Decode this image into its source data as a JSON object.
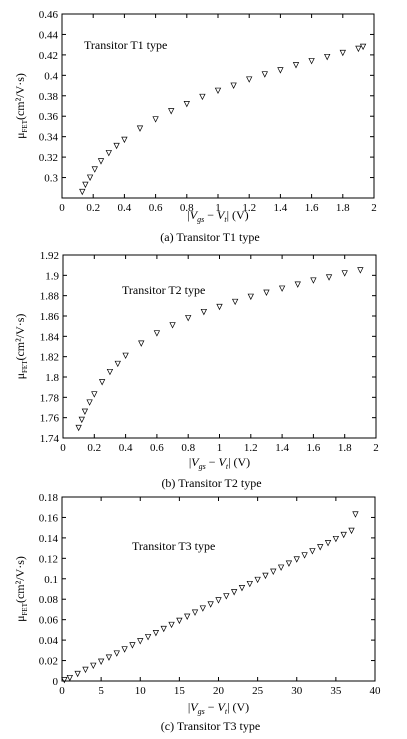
{
  "chart_data": [
    {
      "type": "scatter",
      "caption": "(a) Transitor T1 type",
      "annotation": "Transitor T1 type",
      "ylabel_main": "μ",
      "ylabel_sub": "FET",
      "ylabel_rest": "(cm²/V·s)",
      "xlabel": "|V_gs − V_t| (V)",
      "xlim": [
        0,
        2
      ],
      "ylim": [
        0.28,
        0.46
      ],
      "xticks": [
        "0",
        "0.2",
        "0.4",
        "0.6",
        "0.8",
        "1",
        "1.2",
        "1.4",
        "1.6",
        "1.8",
        "2"
      ],
      "yticks": [
        "0.3",
        "0.32",
        "0.34",
        "0.36",
        "0.38",
        "0.4",
        "0.42",
        "0.44",
        "0.46"
      ],
      "marker": "triangle-down",
      "grid": false,
      "series": [
        {
          "x": [
            0.13,
            0.15,
            0.18,
            0.21,
            0.25,
            0.3,
            0.35,
            0.4,
            0.5,
            0.6,
            0.7,
            0.8,
            0.9,
            1.0,
            1.1,
            1.2,
            1.3,
            1.4,
            1.5,
            1.6,
            1.7,
            1.8,
            1.9,
            1.93
          ],
          "y": [
            0.286,
            0.293,
            0.3,
            0.308,
            0.316,
            0.324,
            0.331,
            0.337,
            0.348,
            0.357,
            0.365,
            0.372,
            0.379,
            0.385,
            0.39,
            0.396,
            0.401,
            0.405,
            0.41,
            0.414,
            0.418,
            0.422,
            0.426,
            0.428
          ]
        }
      ]
    },
    {
      "type": "scatter",
      "caption": "(b) Transitor T2 type",
      "annotation": "Transitor T2 type",
      "ylabel_main": "μ",
      "ylabel_sub": "FET",
      "ylabel_rest": "(cm²/V·s)",
      "xlabel": "|V_gs − V_t| (V)",
      "xlim": [
        0,
        2
      ],
      "ylim": [
        1.74,
        1.92
      ],
      "xticks": [
        "0",
        "0.2",
        "0.4",
        "0.6",
        "0.8",
        "1",
        "1.2",
        "1.4",
        "1.6",
        "1.8",
        "2"
      ],
      "yticks": [
        "1.74",
        "1.76",
        "1.78",
        "1.8",
        "1.82",
        "1.84",
        "1.86",
        "1.88",
        "1.9",
        "1.92"
      ],
      "marker": "triangle-down",
      "grid": false,
      "series": [
        {
          "x": [
            0.1,
            0.12,
            0.14,
            0.17,
            0.2,
            0.25,
            0.3,
            0.35,
            0.4,
            0.5,
            0.6,
            0.7,
            0.8,
            0.9,
            1.0,
            1.1,
            1.2,
            1.3,
            1.4,
            1.5,
            1.6,
            1.7,
            1.8,
            1.9
          ],
          "y": [
            1.75,
            1.758,
            1.766,
            1.775,
            1.783,
            1.795,
            1.805,
            1.813,
            1.821,
            1.833,
            1.843,
            1.851,
            1.858,
            1.864,
            1.869,
            1.874,
            1.879,
            1.883,
            1.887,
            1.891,
            1.895,
            1.898,
            1.902,
            1.905
          ]
        }
      ]
    },
    {
      "type": "scatter",
      "caption": "(c) Transitor T3 type",
      "annotation": "Transitor T3 type",
      "ylabel_main": "μ",
      "ylabel_sub": "FET",
      "ylabel_rest": "(cm²/V·s)",
      "xlabel": "|V_gs − V_t| (V)",
      "xlim": [
        0,
        40
      ],
      "ylim": [
        0,
        0.18
      ],
      "xticks": [
        "0",
        "5",
        "10",
        "15",
        "20",
        "25",
        "30",
        "35",
        "40"
      ],
      "yticks": [
        "0",
        "0.02",
        "0.04",
        "0.06",
        "0.08",
        "0.1",
        "0.12",
        "0.14",
        "0.16",
        "0.18"
      ],
      "marker": "triangle-down",
      "grid": false,
      "series": [
        {
          "x": [
            0.3,
            1,
            2,
            3,
            4,
            5,
            6,
            7,
            8,
            9,
            10,
            11,
            12,
            13,
            14,
            15,
            16,
            17,
            18,
            19,
            20,
            21,
            22,
            23,
            24,
            25,
            26,
            27,
            28,
            29,
            30,
            31,
            32,
            33,
            34,
            35,
            36,
            37,
            37.5
          ],
          "y": [
            0.001,
            0.003,
            0.007,
            0.011,
            0.015,
            0.019,
            0.023,
            0.027,
            0.031,
            0.035,
            0.039,
            0.043,
            0.047,
            0.051,
            0.055,
            0.059,
            0.063,
            0.067,
            0.071,
            0.075,
            0.079,
            0.083,
            0.087,
            0.091,
            0.095,
            0.099,
            0.103,
            0.107,
            0.111,
            0.115,
            0.119,
            0.123,
            0.127,
            0.131,
            0.135,
            0.139,
            0.143,
            0.147,
            0.163
          ]
        }
      ]
    }
  ],
  "xlabel_parts": {
    "bar_open": "|",
    "v1": "V",
    "sub1": "gs",
    "minus": " − ",
    "v2": "V",
    "sub2": "t",
    "bar_close": "|",
    "unit": " (V)"
  }
}
